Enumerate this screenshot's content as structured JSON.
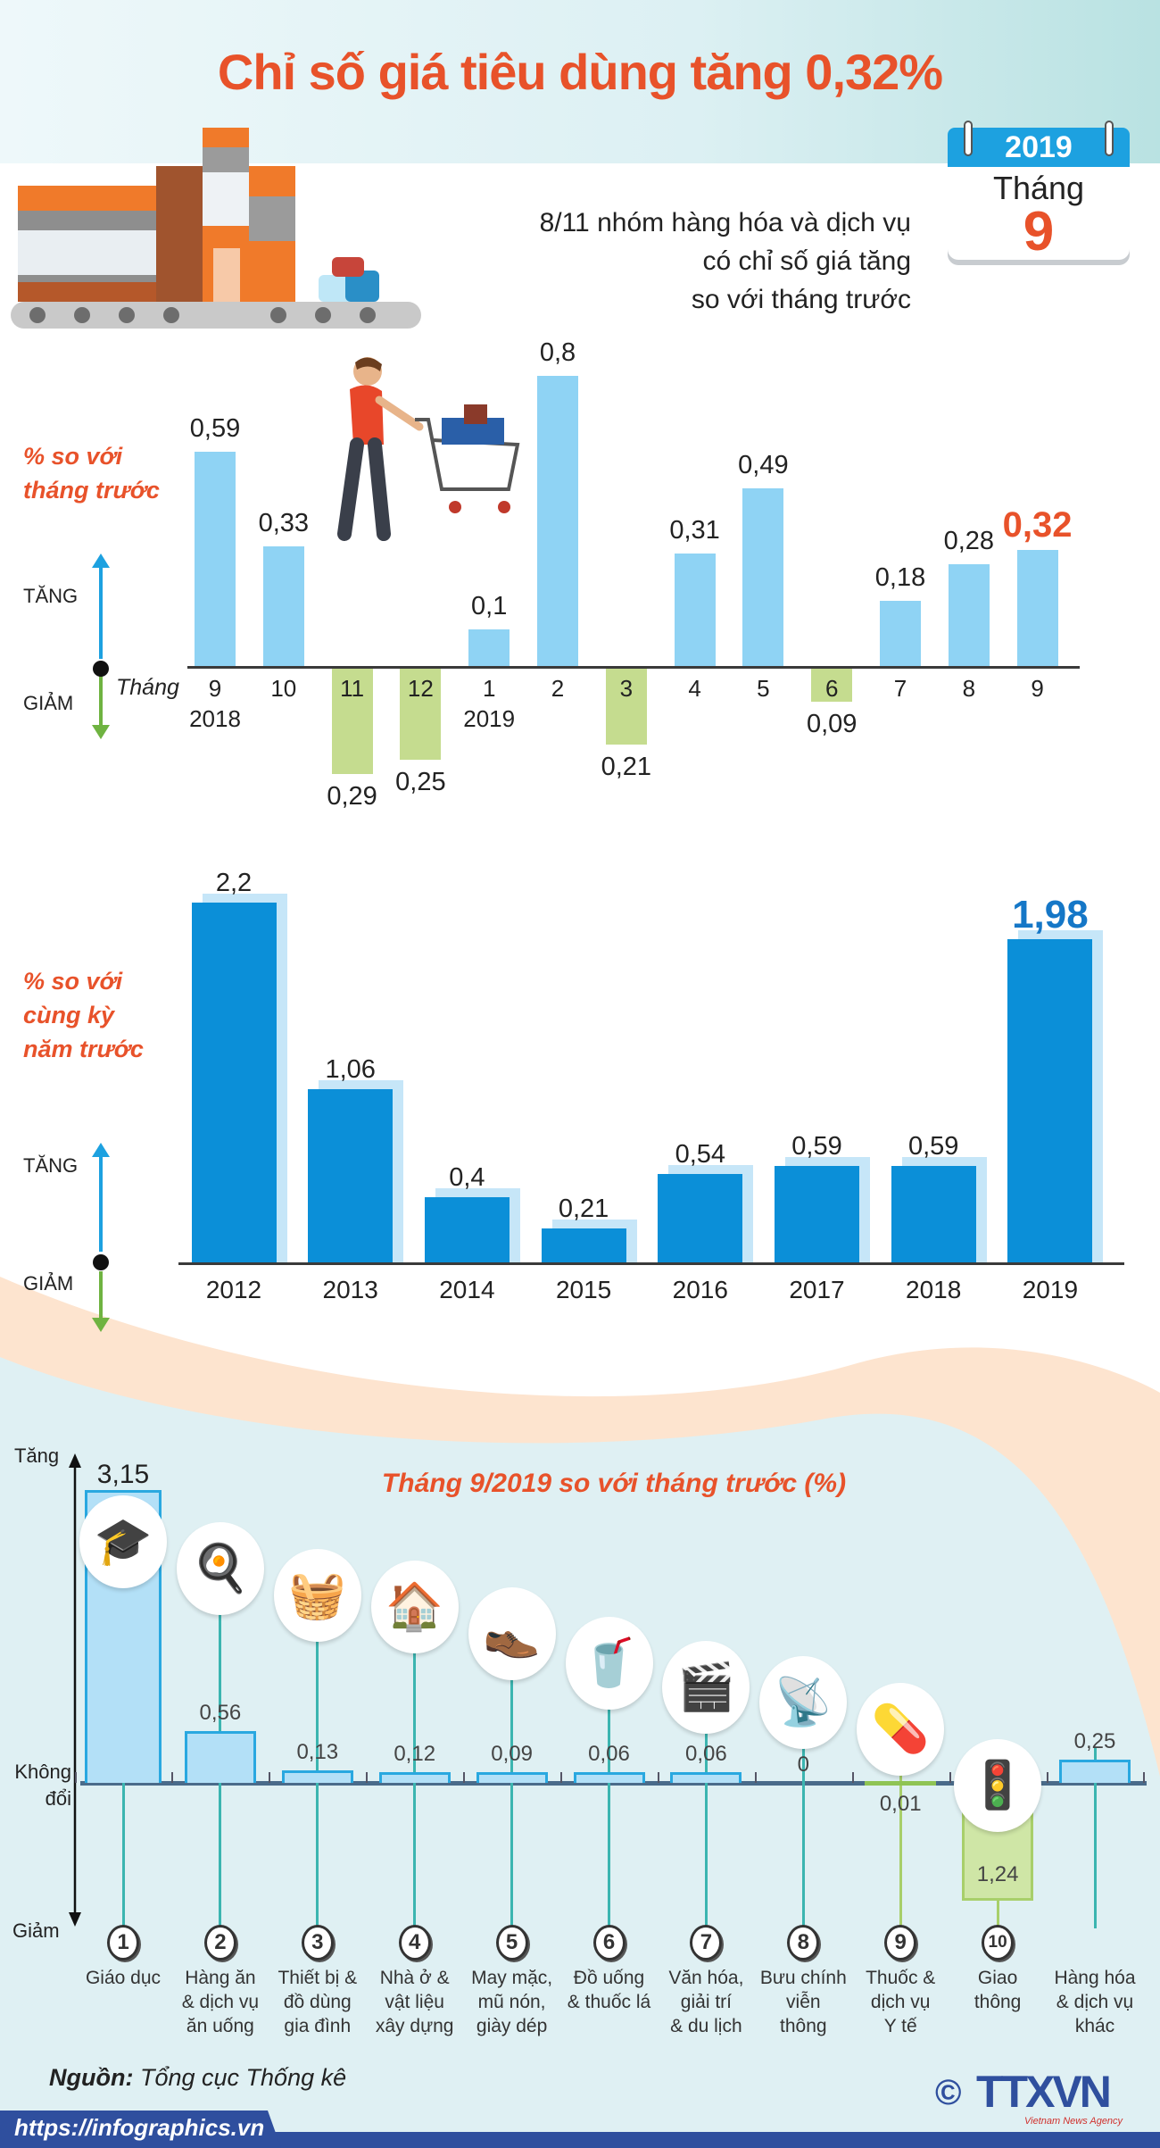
{
  "header": {
    "title": "Chỉ số giá tiêu dùng tăng 0,32%",
    "calendar": {
      "year": "2019",
      "month_label": "Tháng",
      "month": "9"
    },
    "subtitle_lines": [
      "8/11 nhóm hàng hóa và dịch vụ",
      "có chỉ số giá tăng",
      "so với tháng trước"
    ]
  },
  "colors": {
    "title_orange": "#e8522a",
    "increase_bar_light": "#8fd3f4",
    "decrease_bar_green": "#c5dc8f",
    "yearly_bar_blue": "#0b8fd8",
    "section_bg": "#dff0f3",
    "footer_blue": "#2f4f9e"
  },
  "legend": {
    "increase": "TĂNG",
    "decrease": "GIẢM"
  },
  "chart_data": [
    {
      "type": "bar",
      "ylabel": "% so với tháng trước",
      "ylabel_lines": [
        "% so với",
        "tháng trước"
      ],
      "x_prefix": "Tháng",
      "categories": [
        "9",
        "10",
        "11",
        "12",
        "1",
        "2",
        "3",
        "4",
        "5",
        "6",
        "7",
        "8",
        "9"
      ],
      "category_sublabels": [
        "2018",
        "",
        "",
        "",
        "2019",
        "",
        "",
        "",
        "",
        "",
        "",
        "",
        ""
      ],
      "values": [
        0.59,
        0.33,
        -0.29,
        -0.25,
        0.1,
        0.8,
        -0.21,
        0.31,
        0.49,
        -0.09,
        0.18,
        0.28,
        0.32
      ],
      "value_labels": [
        "0,59",
        "0,33",
        "0,29",
        "0,25",
        "0,1",
        "0,8",
        "0,21",
        "0,31",
        "0,49",
        "0,09",
        "0,18",
        "0,28",
        "0,32"
      ],
      "highlight_last": true,
      "grid": false
    },
    {
      "type": "bar",
      "ylabel": "% so với cùng kỳ năm trước",
      "ylabel_lines": [
        "% so với",
        "cùng kỳ",
        "năm trước"
      ],
      "categories": [
        "2012",
        "2013",
        "2014",
        "2015",
        "2016",
        "2017",
        "2018",
        "2019"
      ],
      "values": [
        2.2,
        1.06,
        0.4,
        0.21,
        0.54,
        0.59,
        0.59,
        1.98
      ],
      "value_labels": [
        "2,2",
        "1,06",
        "0,4",
        "0,21",
        "0,54",
        "0,59",
        "0,59",
        "1,98"
      ],
      "highlight_last": true,
      "grid": false
    },
    {
      "type": "bar",
      "title": "Tháng 9/2019 so với tháng trước (%)",
      "axis_labels": {
        "top": "Tăng",
        "middle": "Không đổi",
        "bottom": "Giảm"
      },
      "numbers": [
        "1",
        "2",
        "3",
        "4",
        "5",
        "6",
        "7",
        "8",
        "9",
        "10",
        ""
      ],
      "categories": [
        "Giáo dục",
        "Hàng ăn\n& dịch vụ\năn uống",
        "Thiết bị &\nđồ dùng\ngia đình",
        "Nhà ở &\nvật liệu\nxây dựng",
        "May mặc,\nmũ nón,\ngiày dép",
        "Đồ uống\n& thuốc lá",
        "Văn hóa,\ngiải trí\n& du lịch",
        "Bưu chính\nviễn\nthông",
        "Thuốc &\ndịch vụ\nY tế",
        "Giao\nthông",
        "Hàng hóa\n& dịch vụ\nkhác"
      ],
      "values": [
        3.15,
        0.56,
        0.13,
        0.12,
        0.09,
        0.06,
        0.06,
        0,
        -0.01,
        -1.24,
        0.25
      ],
      "value_labels": [
        "3,15",
        "0,56",
        "0,13",
        "0,12",
        "0,09",
        "0,06",
        "0,06",
        "0",
        "0,01",
        "1,24",
        "0,25"
      ],
      "icons": [
        "graduation-cap-icon",
        "food-plate-icon",
        "washing-machine-icon",
        "house-icon",
        "clothes-shoes-icon",
        "drink-cigarettes-icon",
        "film-clapper-icon",
        "antenna-tower-icon",
        "pills-icon",
        "traffic-light-icon",
        ""
      ],
      "icon_glyphs": [
        "🎓",
        "🍳",
        "🧺",
        "🏠",
        "👞",
        "🥤",
        "🎬",
        "📡",
        "💊",
        "🚦",
        ""
      ],
      "grid": false
    }
  ],
  "footer": {
    "source_label": "Nguồn:",
    "source": "Tổng cục Thống kê",
    "url": "https://infographics.vn",
    "logo_text": "TTXVN",
    "logo_sub": "Vietnam News Agency",
    "copyright": "©"
  }
}
